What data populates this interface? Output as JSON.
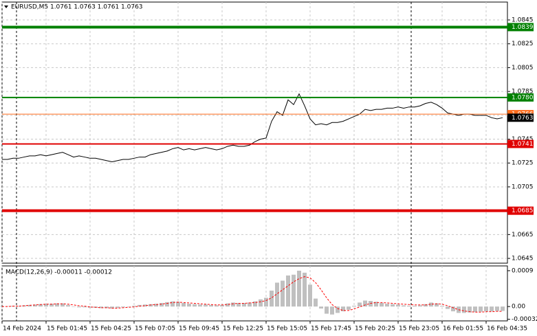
{
  "chart_data": [
    {
      "type": "line",
      "title": "EURUSD,M5  1.0761 1.0763 1.0761 1.0763",
      "categories": [
        "14 Feb 2024",
        null,
        null,
        null,
        null,
        null,
        null,
        null,
        "15 Feb 01:45",
        null,
        null,
        null,
        null,
        null,
        null,
        null,
        "15 Feb 04:25",
        null,
        null,
        null,
        null,
        null,
        null,
        null,
        "15 Feb 07:05",
        null,
        null,
        null,
        null,
        null,
        null,
        null,
        "15 Feb 09:45",
        null,
        null,
        null,
        null,
        null,
        null,
        null,
        "15 Feb 12:25",
        null,
        null,
        null,
        null,
        null,
        null,
        null,
        "15 Feb 15:05",
        null,
        null,
        null,
        null,
        null,
        null,
        null,
        "15 Feb 17:45",
        null,
        null,
        null,
        null,
        null,
        null,
        null,
        "15 Feb 20:25",
        null,
        null,
        null,
        null,
        null,
        null,
        null,
        "15 Feb 23:05",
        null,
        null,
        null,
        null,
        null,
        null,
        null,
        "16 Feb 01:55",
        null,
        null,
        null,
        null,
        null,
        null,
        null,
        "16 Feb 04:35",
        null,
        null,
        null
      ],
      "values": [
        1.0728,
        1.0728,
        1.0729,
        1.0729,
        1.073,
        1.0731,
        1.0731,
        1.0732,
        1.0731,
        1.0732,
        1.0733,
        1.0734,
        1.0732,
        1.073,
        1.0731,
        1.073,
        1.0729,
        1.0729,
        1.0728,
        1.0727,
        1.0726,
        1.0727,
        1.0728,
        1.0728,
        1.0729,
        1.073,
        1.073,
        1.0732,
        1.0733,
        1.0734,
        1.0735,
        1.0737,
        1.0738,
        1.0736,
        1.0737,
        1.0736,
        1.0737,
        1.0738,
        1.0737,
        1.0736,
        1.0737,
        1.0739,
        1.074,
        1.0739,
        1.0739,
        1.074,
        1.0743,
        1.0745,
        1.0746,
        1.076,
        1.0768,
        1.0765,
        1.0778,
        1.0774,
        1.0783,
        1.0773,
        1.0762,
        1.0757,
        1.0758,
        1.0757,
        1.0759,
        1.0759,
        1.076,
        1.0762,
        1.0764,
        1.0766,
        1.077,
        1.0769,
        1.077,
        1.077,
        1.0771,
        1.0771,
        1.0772,
        1.0771,
        1.0772,
        1.0772,
        1.0773,
        1.0775,
        1.0776,
        1.0774,
        1.0771,
        1.0767,
        1.0766,
        1.0765,
        1.0766,
        1.0766,
        1.0765,
        1.0765,
        1.0765,
        1.0763,
        1.0762,
        1.0763
      ],
      "color": "#000000",
      "ylim": [
        1.0641,
        1.086
      ],
      "yticks": [
        1.0845,
        1.0825,
        1.0805,
        1.0785,
        1.0765,
        1.0745,
        1.0725,
        1.0705,
        1.0685,
        1.0665,
        1.0645
      ],
      "grid": true,
      "levels": [
        {
          "value": 1.0839,
          "color": "#008000",
          "linewidth": 4
        },
        {
          "value": 1.078,
          "label": "1.0780",
          "color": "#008000",
          "linewidth": 2
        },
        {
          "value": 1.0741,
          "color": "#e00000",
          "linewidth": 2
        },
        {
          "value": 1.0685,
          "color": "#e00000",
          "linewidth": 4
        },
        {
          "value": 1.0766,
          "color": "#ff6a1a",
          "linewidth": 1
        },
        {
          "value": 1.0763,
          "color": "#000000",
          "linewidth": 0
        }
      ]
    },
    {
      "type": "bar",
      "title": "MACD(12,26,9) -0.00011 -0.00012",
      "values": [
        1e-05,
        1e-05,
        2e-05,
        2e-05,
        3e-05,
        4e-05,
        5e-05,
        6e-05,
        7e-05,
        7e-05,
        8e-05,
        8e-05,
        4e-05,
        -1e-05,
        -2e-05,
        -2e-05,
        -3e-05,
        -3e-05,
        -4e-05,
        -4e-05,
        -5e-05,
        -3e-05,
        -2e-05,
        -1e-05,
        2e-05,
        4e-05,
        5e-05,
        6e-05,
        7e-05,
        9e-05,
        0.00011,
        0.00013,
        0.00012,
        9e-05,
        7e-05,
        6e-05,
        5e-05,
        5e-05,
        4e-05,
        3e-05,
        4e-05,
        8e-05,
        0.0001,
        9e-05,
        9e-05,
        0.0001,
        0.00013,
        0.00018,
        0.00022,
        0.0004,
        0.0006,
        0.00065,
        0.00078,
        0.0008,
        0.0009,
        0.00085,
        0.00055,
        0.0002,
        -5e-05,
        -0.00018,
        -0.0002,
        -0.00016,
        -0.00012,
        -8e-05,
        2e-05,
        0.0001,
        0.00015,
        0.00014,
        0.00012,
        9e-05,
        7e-05,
        6e-05,
        5e-05,
        3e-05,
        2e-05,
        2e-05,
        3e-05,
        6e-05,
        0.0001,
        8e-05,
        2e-05,
        -6e-05,
        -0.00012,
        -0.00016,
        -0.00016,
        -0.00015,
        -0.00014,
        -0.00013,
        -0.00012,
        -0.00012,
        -0.00011,
        -0.00011
      ],
      "color": "#c0c0c0",
      "signal": {
        "color": "#ff0000",
        "values": [
          0.0,
          0.0,
          1e-05,
          1e-05,
          2e-05,
          3e-05,
          4e-05,
          5e-05,
          6e-05,
          6e-05,
          7e-05,
          7e-05,
          6e-05,
          4e-05,
          2e-05,
          1e-05,
          -1e-05,
          -2e-05,
          -3e-05,
          -3e-05,
          -4e-05,
          -4e-05,
          -3e-05,
          -2e-05,
          -1e-05,
          1e-05,
          2e-05,
          4e-05,
          5e-05,
          6e-05,
          8e-05,
          0.0001,
          0.00011,
          0.0001,
          9e-05,
          8e-05,
          7e-05,
          6e-05,
          5e-05,
          4e-05,
          4e-05,
          5e-05,
          7e-05,
          8e-05,
          8e-05,
          9e-05,
          0.0001,
          0.00012,
          0.00015,
          0.00022,
          0.00032,
          0.00042,
          0.00052,
          0.00062,
          0.0007,
          0.00075,
          0.00072,
          0.0006,
          0.00042,
          0.00022,
          5e-05,
          -5e-05,
          -0.0001,
          -0.0001,
          -6e-05,
          -1e-05,
          4e-05,
          8e-05,
          0.0001,
          0.0001,
          9e-05,
          8e-05,
          7e-05,
          6e-05,
          5e-05,
          4e-05,
          4e-05,
          4e-05,
          6e-05,
          7e-05,
          6e-05,
          2e-05,
          -3e-05,
          -8e-05,
          -0.00011,
          -0.00013,
          -0.00014,
          -0.00014,
          -0.00013,
          -0.00013,
          -0.00012,
          -0.00012
        ]
      },
      "ylim": [
        -0.00036,
        0.00102
      ],
      "yticks": [
        0.0009,
        {
          "value": 0,
          "label": "0.00"
        },
        -0.00032
      ]
    }
  ]
}
